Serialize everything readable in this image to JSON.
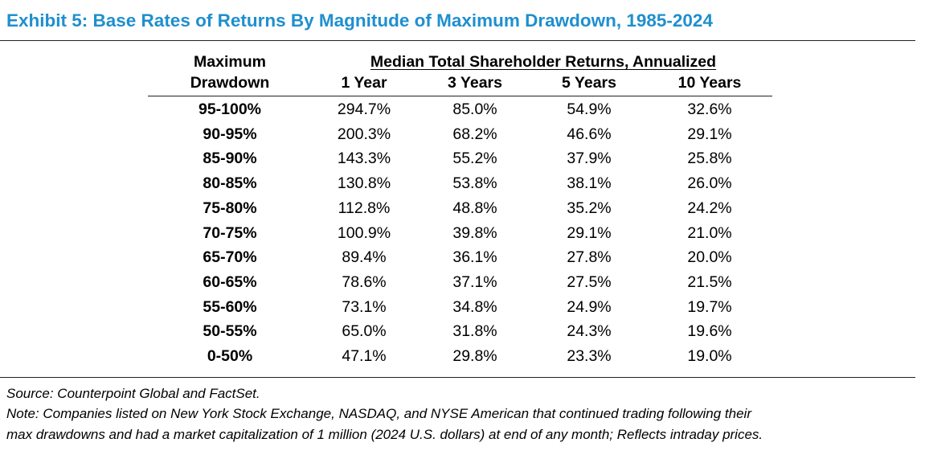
{
  "exhibit": {
    "title": "Exhibit 5: Base Rates of Returns By Magnitude of Maximum Drawdown, 1985-2024",
    "title_color": "#1f8fce"
  },
  "table": {
    "row_header_line1": "Maximum",
    "row_header_line2": "Drawdown",
    "group_header": "Median Total Shareholder Returns, Annualized",
    "columns": [
      "1 Year",
      "3 Years",
      "5 Years",
      "10 Years"
    ],
    "rows": [
      {
        "label": "95-100%",
        "values": [
          "294.7%",
          "85.0%",
          "54.9%",
          "32.6%"
        ]
      },
      {
        "label": "90-95%",
        "values": [
          "200.3%",
          "68.2%",
          "46.6%",
          "29.1%"
        ]
      },
      {
        "label": "85-90%",
        "values": [
          "143.3%",
          "55.2%",
          "37.9%",
          "25.8%"
        ]
      },
      {
        "label": "80-85%",
        "values": [
          "130.8%",
          "53.8%",
          "38.1%",
          "26.0%"
        ]
      },
      {
        "label": "75-80%",
        "values": [
          "112.8%",
          "48.8%",
          "35.2%",
          "24.2%"
        ]
      },
      {
        "label": "70-75%",
        "values": [
          "100.9%",
          "39.8%",
          "29.1%",
          "21.0%"
        ]
      },
      {
        "label": "65-70%",
        "values": [
          "89.4%",
          "36.1%",
          "27.8%",
          "20.0%"
        ]
      },
      {
        "label": "60-65%",
        "values": [
          "78.6%",
          "37.1%",
          "27.5%",
          "21.5%"
        ]
      },
      {
        "label": "55-60%",
        "values": [
          "73.1%",
          "34.8%",
          "24.9%",
          "19.7%"
        ]
      },
      {
        "label": "50-55%",
        "values": [
          "65.0%",
          "31.8%",
          "24.3%",
          "19.6%"
        ]
      },
      {
        "label": "0-50%",
        "values": [
          "47.1%",
          "29.8%",
          "23.3%",
          "19.0%"
        ]
      }
    ]
  },
  "footer": {
    "source": "Source: Counterpoint Global and FactSet.",
    "note_line1": "Note: Companies listed on New York Stock Exchange, NASDAQ, and NYSE American that continued trading following their",
    "note_line2": "max drawdowns and had a market capitalization of 1 million (2024 U.S. dollars) at end of any month; Reflects intraday prices."
  }
}
